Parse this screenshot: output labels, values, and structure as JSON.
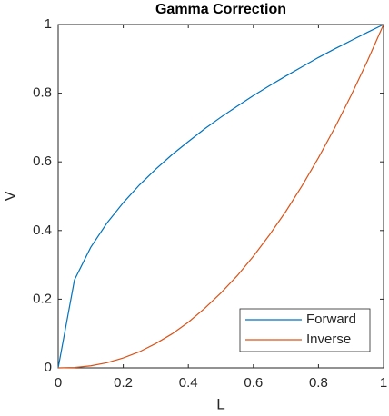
{
  "chart_data": {
    "type": "line",
    "title": "Gamma Correction",
    "x_label": "L",
    "y_label": "V",
    "x": [
      0,
      0.05,
      0.1,
      0.15,
      0.2,
      0.25,
      0.3,
      0.35,
      0.4,
      0.45,
      0.5,
      0.55,
      0.6,
      0.65,
      0.7,
      0.75,
      0.8,
      0.85,
      0.9,
      0.95,
      1
    ],
    "series": [
      {
        "name": "Forward",
        "color": "#0072bd",
        "values": [
          0,
          0.256,
          0.351,
          0.422,
          0.481,
          0.533,
          0.579,
          0.621,
          0.659,
          0.696,
          0.73,
          0.762,
          0.793,
          0.822,
          0.85,
          0.877,
          0.904,
          0.929,
          0.953,
          0.977,
          1
        ]
      },
      {
        "name": "Inverse",
        "color": "#d95319",
        "values": [
          0,
          0.001,
          0.006,
          0.015,
          0.029,
          0.047,
          0.071,
          0.099,
          0.133,
          0.173,
          0.218,
          0.268,
          0.325,
          0.388,
          0.456,
          0.531,
          0.612,
          0.699,
          0.793,
          0.893,
          1
        ]
      }
    ],
    "xlim": [
      0,
      1
    ],
    "ylim": [
      0,
      1
    ],
    "xticks": [
      0,
      0.2,
      0.4,
      0.6,
      0.8,
      1
    ],
    "yticks": [
      0,
      0.2,
      0.4,
      0.6,
      0.8,
      1
    ],
    "grid": false,
    "legend": "southeast"
  }
}
